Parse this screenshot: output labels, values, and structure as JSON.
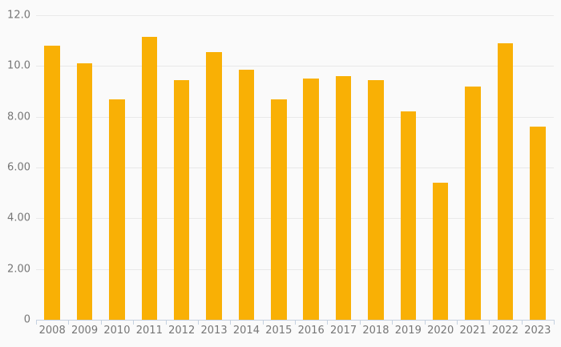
{
  "chart_data": {
    "type": "bar",
    "title": "",
    "xlabel": "",
    "ylabel": "",
    "categories": [
      "2008",
      "2009",
      "2010",
      "2011",
      "2012",
      "2013",
      "2014",
      "2015",
      "2016",
      "2017",
      "2018",
      "2019",
      "2020",
      "2021",
      "2022",
      "2023"
    ],
    "values": [
      10.8,
      10.1,
      8.7,
      11.15,
      9.45,
      10.55,
      9.85,
      8.7,
      9.5,
      9.6,
      9.45,
      8.2,
      5.4,
      9.2,
      10.9,
      7.6
    ],
    "ylim": [
      0,
      12
    ],
    "y_ticks": [
      {
        "value": 0,
        "label": "0"
      },
      {
        "value": 2,
        "label": "2.00"
      },
      {
        "value": 4,
        "label": "4.00"
      },
      {
        "value": 6,
        "label": "6.00"
      },
      {
        "value": 8,
        "label": "8.00"
      },
      {
        "value": 10,
        "label": "10.0"
      },
      {
        "value": 12,
        "label": "12.0"
      }
    ],
    "grid": true,
    "legend": false,
    "colors": {
      "bar": "#F9B005",
      "gridline": "#e9e9e9",
      "axis_line": "#c5d1e0",
      "tick_label": "#767676",
      "background": "#fafafa"
    }
  }
}
